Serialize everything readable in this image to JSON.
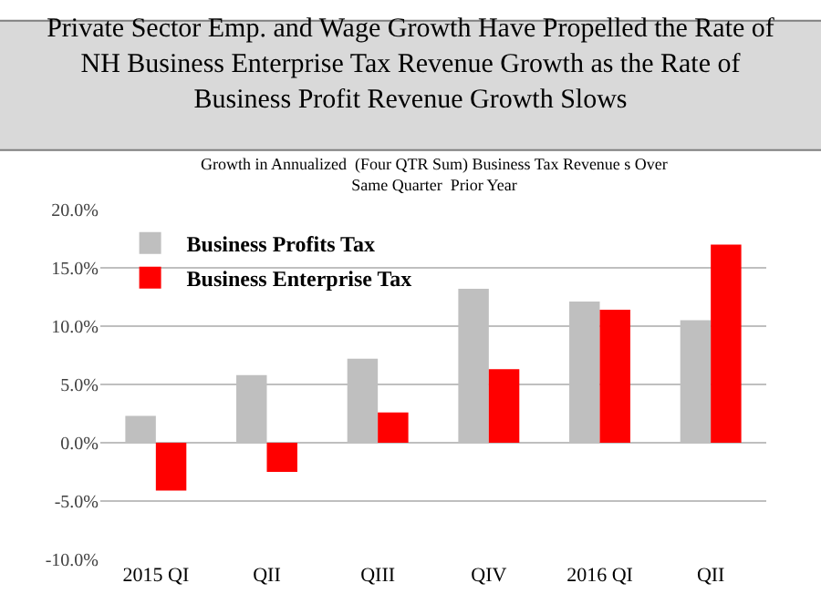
{
  "chart_data": {
    "type": "bar",
    "title": "Private Sector Emp. and Wage Growth Have Propelled the Rate of NH Business Enterprise Tax Revenue Growth as the Rate of Business Profit Revenue Growth Slows",
    "subtitle": "Growth in Annualized  (Four QTR Sum) Business Tax Revenue s Over Same Quarter  Prior Year",
    "categories": [
      "2015 QI",
      "QII",
      "QIII",
      "QIV",
      "2016 QI",
      "QII"
    ],
    "series": [
      {
        "name": "Business Profits Tax",
        "color": "#bfbfbf",
        "values": [
          2.3,
          5.8,
          7.2,
          13.2,
          12.1,
          10.5
        ]
      },
      {
        "name": "Business Enterprise Tax",
        "color": "#ff0000",
        "values": [
          -4.1,
          -2.5,
          2.6,
          6.3,
          11.4,
          17.0
        ]
      }
    ],
    "ylim": [
      -10,
      20
    ],
    "yticks": [
      {
        "value": -10,
        "label": "-10.0%"
      },
      {
        "value": -5,
        "label": "-5.0%"
      },
      {
        "value": 0,
        "label": "0.0%"
      },
      {
        "value": 5,
        "label": "5.0%"
      },
      {
        "value": 10,
        "label": "10.0%"
      },
      {
        "value": 15,
        "label": "15.0%"
      },
      {
        "value": 20,
        "label": "20.0%"
      }
    ],
    "grid": "y",
    "legend": "top left"
  }
}
